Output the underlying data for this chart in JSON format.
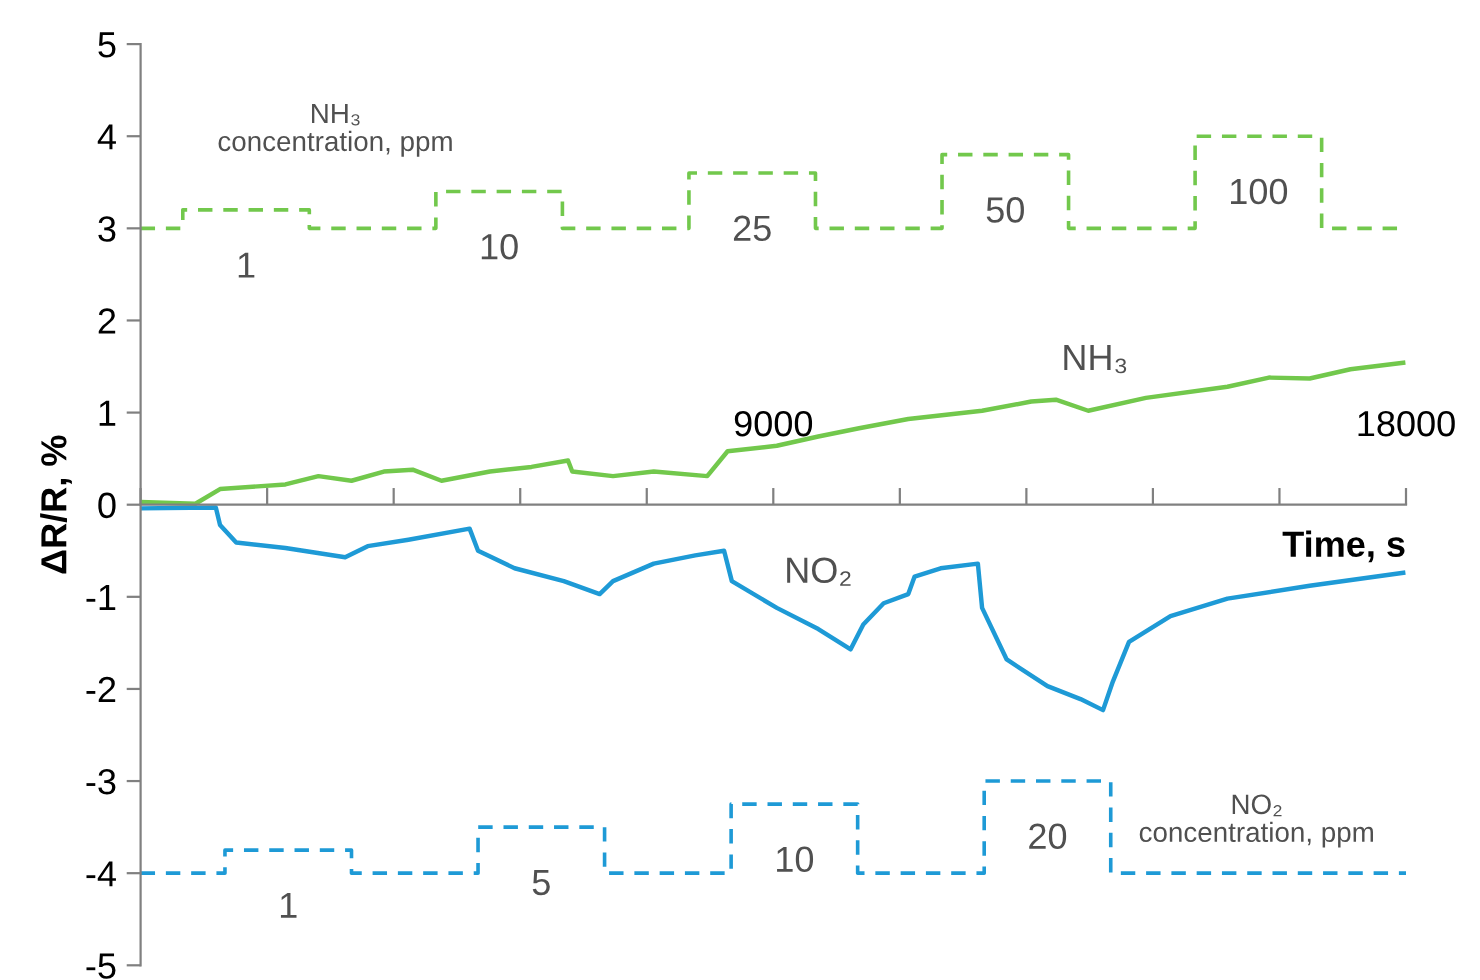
{
  "chart_data": {
    "type": "line",
    "xlabel": "Time, s",
    "ylabel": "ΔR/R, %",
    "xlim": [
      0,
      18000
    ],
    "ylim": [
      -5,
      5
    ],
    "xticks": [
      {
        "value": 0,
        "label": null
      },
      {
        "value": 1800,
        "label": null
      },
      {
        "value": 3600,
        "label": null
      },
      {
        "value": 5400,
        "label": null
      },
      {
        "value": 7200,
        "label": null
      },
      9000,
      {
        "value": 10800,
        "label": null
      },
      {
        "value": 12600,
        "label": null
      },
      {
        "value": 14400,
        "label": null
      },
      {
        "value": 16200,
        "label": null
      },
      18000
    ],
    "yticks": [
      -5,
      -4,
      -3,
      -2,
      -1,
      0,
      1,
      2,
      3,
      4,
      5
    ],
    "grid": false,
    "legend": false,
    "series": [
      {
        "name": "NH₃",
        "color": "#72c84c",
        "x": [
          0,
          780,
          1130,
          2060,
          2530,
          3000,
          3460,
          3870,
          4280,
          4970,
          5560,
          6080,
          6140,
          6720,
          7300,
          8060,
          8350,
          9050,
          9640,
          10220,
          10920,
          11970,
          12670,
          13020,
          13480,
          14300,
          15460,
          16050,
          16630,
          17210,
          17960
        ],
        "values": [
          0.03,
          0.01,
          0.17,
          0.22,
          0.31,
          0.26,
          0.36,
          0.38,
          0.26,
          0.36,
          0.41,
          0.48,
          0.36,
          0.31,
          0.36,
          0.31,
          0.58,
          0.64,
          0.74,
          0.83,
          0.93,
          1.02,
          1.12,
          1.14,
          1.02,
          1.16,
          1.28,
          1.38,
          1.37,
          1.47,
          1.54
        ]
      },
      {
        "name": "NO₂",
        "color": "#1e9ad6",
        "x": [
          0,
          1070,
          1130,
          1360,
          2060,
          2910,
          3230,
          3810,
          4680,
          4800,
          5320,
          6020,
          6530,
          6720,
          7300,
          7890,
          8300,
          8410,
          9050,
          9640,
          10100,
          10280,
          10570,
          10920,
          11010,
          11380,
          11910,
          11970,
          12320,
          12900,
          13370,
          13690,
          13830,
          14060,
          14650,
          15460,
          16630,
          17960
        ],
        "values": [
          -0.04,
          -0.03,
          -0.22,
          -0.41,
          -0.47,
          -0.57,
          -0.45,
          -0.38,
          -0.26,
          -0.5,
          -0.69,
          -0.83,
          -0.97,
          -0.83,
          -0.64,
          -0.55,
          -0.5,
          -0.83,
          -1.12,
          -1.35,
          -1.57,
          -1.3,
          -1.07,
          -0.97,
          -0.78,
          -0.69,
          -0.64,
          -1.12,
          -1.68,
          -1.97,
          -2.11,
          -2.23,
          -1.92,
          -1.49,
          -1.21,
          -1.02,
          -0.88,
          -0.74
        ]
      },
      {
        "type": "step",
        "line_style": "dashed",
        "color": "#72c84c",
        "x": [
          0,
          600,
          2400,
          4200,
          6000,
          7800,
          9600,
          11400,
          13200,
          15000,
          16800,
          18000
        ],
        "values": [
          3,
          3.2,
          3,
          3.4,
          3,
          3.6,
          3,
          3.8,
          3,
          4.0,
          3,
          3
        ]
      },
      {
        "type": "step",
        "line_style": "dashed",
        "color": "#1e9ad6",
        "x": [
          0,
          1200,
          3000,
          4800,
          6600,
          8400,
          10200,
          12000,
          13800,
          18000
        ],
        "values": [
          -4,
          -3.75,
          -4,
          -3.5,
          -4,
          -3.25,
          -4,
          -3,
          -4,
          -4
        ]
      }
    ],
    "annotations": [
      "NH₃\nconcentration, ppm",
      "NO₂\nconcentration, ppm",
      {
        "text": "1",
        "x": 1500,
        "y": 3.2
      },
      {
        "text": "10",
        "x": 5100,
        "y": 3.4
      },
      {
        "text": "25",
        "x": 8700,
        "y": 3.6
      },
      {
        "text": "50",
        "x": 12300,
        "y": 3.8
      },
      {
        "text": "100",
        "x": 15900,
        "y": 4.0
      },
      {
        "text": "1",
        "x": 2100,
        "y": -3.75
      },
      {
        "text": "5",
        "x": 5700,
        "y": -3.5
      },
      {
        "text": "10",
        "x": 9300,
        "y": -3.25
      },
      {
        "text": "20",
        "x": 12900,
        "y": -3
      }
    ]
  }
}
